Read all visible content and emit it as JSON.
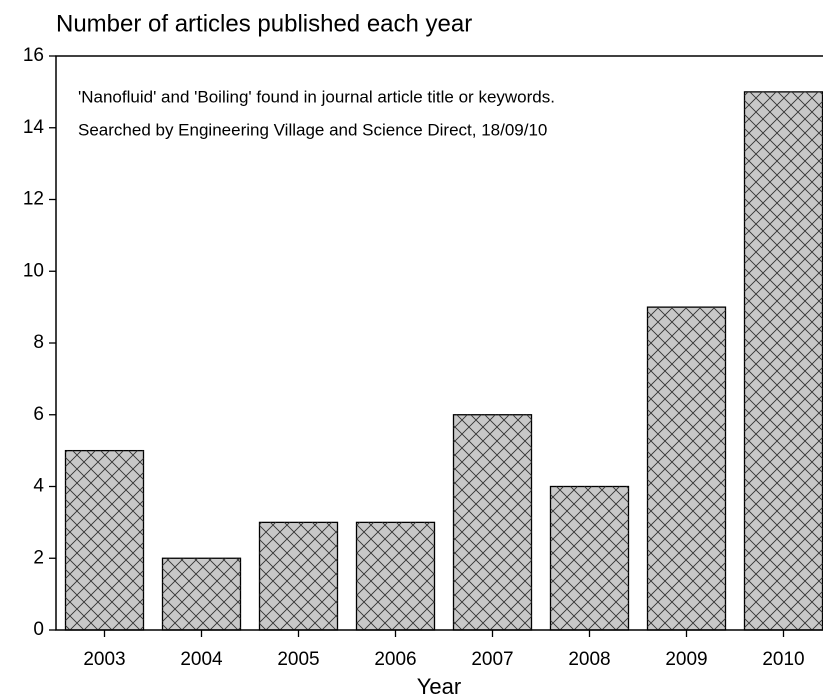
{
  "chart_data": {
    "type": "bar",
    "title": "Number of articles published each year",
    "annotations": [
      "'Nanofluid' and 'Boiling' found in journal article title or keywords.",
      "Searched by Engineering Village and Science Direct, 18/09/10"
    ],
    "x_label": "Year",
    "categories": [
      "2003",
      "2004",
      "2005",
      "2006",
      "2007",
      "2008",
      "2009",
      "2010"
    ],
    "values": [
      5,
      2,
      3,
      3,
      6,
      4,
      9,
      15
    ],
    "color": "#c8c8c8",
    "ylim": [
      0,
      16
    ],
    "yticks": [
      0,
      2,
      4,
      6,
      8,
      10,
      12,
      14,
      16
    ],
    "grid": false
  }
}
